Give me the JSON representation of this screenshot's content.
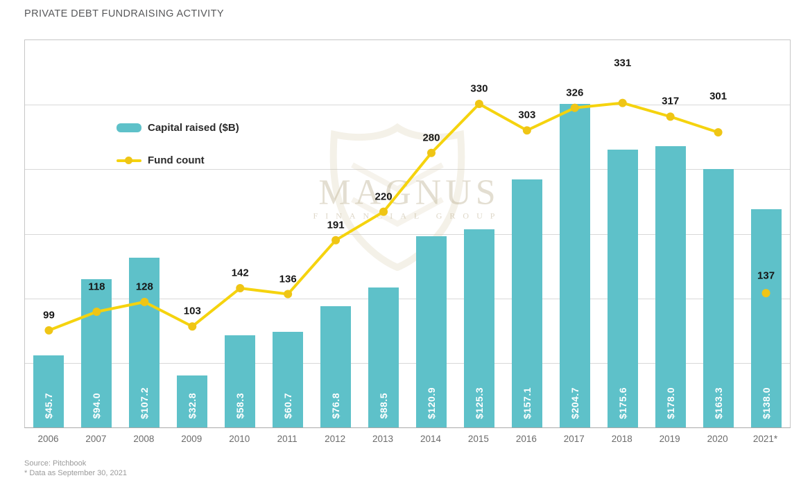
{
  "title": "PRIVATE DEBT FUNDRAISING ACTIVITY",
  "legend": {
    "capital_label": "Capital raised ($B)",
    "fund_label": "Fund count"
  },
  "watermark": {
    "name": "MAGNUS",
    "subtitle": "FINANCIAL GROUP"
  },
  "source": {
    "line1": "Source: Pitchbook",
    "line2": "* Data as September 30, 2021"
  },
  "colors": {
    "bar": "#5ec1c9",
    "line": "#f5d30e",
    "marker": "#efc515",
    "count_label_text": "#161616",
    "bar_label_text": "#ffffff",
    "grid": "#d8d8d8",
    "plot_border": "#c6c6c6",
    "axis_text": "#6b6b6b",
    "title_text": "#57585a"
  },
  "chart_data": {
    "type": "bar+line combo",
    "title": "PRIVATE DEBT FUNDRAISING ACTIVITY",
    "categories": [
      "2006",
      "2007",
      "2008",
      "2009",
      "2010",
      "2011",
      "2012",
      "2013",
      "2014",
      "2015",
      "2016",
      "2017",
      "2018",
      "2019",
      "2020",
      "2021*"
    ],
    "series": [
      {
        "name": "Capital raised ($B)",
        "type": "bar",
        "color": "#5ec1c9",
        "values": [
          45.7,
          94.0,
          107.2,
          32.8,
          58.3,
          60.7,
          76.8,
          88.5,
          120.9,
          125.3,
          157.1,
          204.7,
          175.6,
          178.0,
          163.3,
          138.0
        ],
        "labels": [
          "$45.7",
          "$94.0",
          "$107.2",
          "$32.8",
          "$58.3",
          "$60.7",
          "$76.8",
          "$88.5",
          "$120.9",
          "$125.3",
          "$157.1",
          "$204.7",
          "$175.6",
          "$178.0",
          "$163.3",
          "$138.0"
        ]
      },
      {
        "name": "Fund count",
        "type": "line",
        "color": "#f5d30e",
        "values": [
          99,
          118,
          128,
          103,
          142,
          136,
          191,
          220,
          280,
          330,
          303,
          326,
          331,
          317,
          301,
          137
        ],
        "labels": [
          "99",
          "118",
          "128",
          "103",
          "142",
          "136",
          "191",
          "220",
          "280",
          "330",
          "303",
          "326",
          "331",
          "317",
          "301",
          "137"
        ],
        "disconnected_last_point": true
      }
    ],
    "bar_axis_max": 245,
    "line_axis_max": 395,
    "ylim_bar": [
      0,
      245
    ],
    "ylim_line": [
      0,
      395
    ],
    "gridline_count": 5,
    "grid": true,
    "y_axis_labels_visible": false,
    "legend_position": "inside top-left",
    "label_dy_default": -22,
    "label_dy_overrides": {
      "1": -36,
      "12": -58,
      "14": -52,
      "15": -25
    }
  }
}
